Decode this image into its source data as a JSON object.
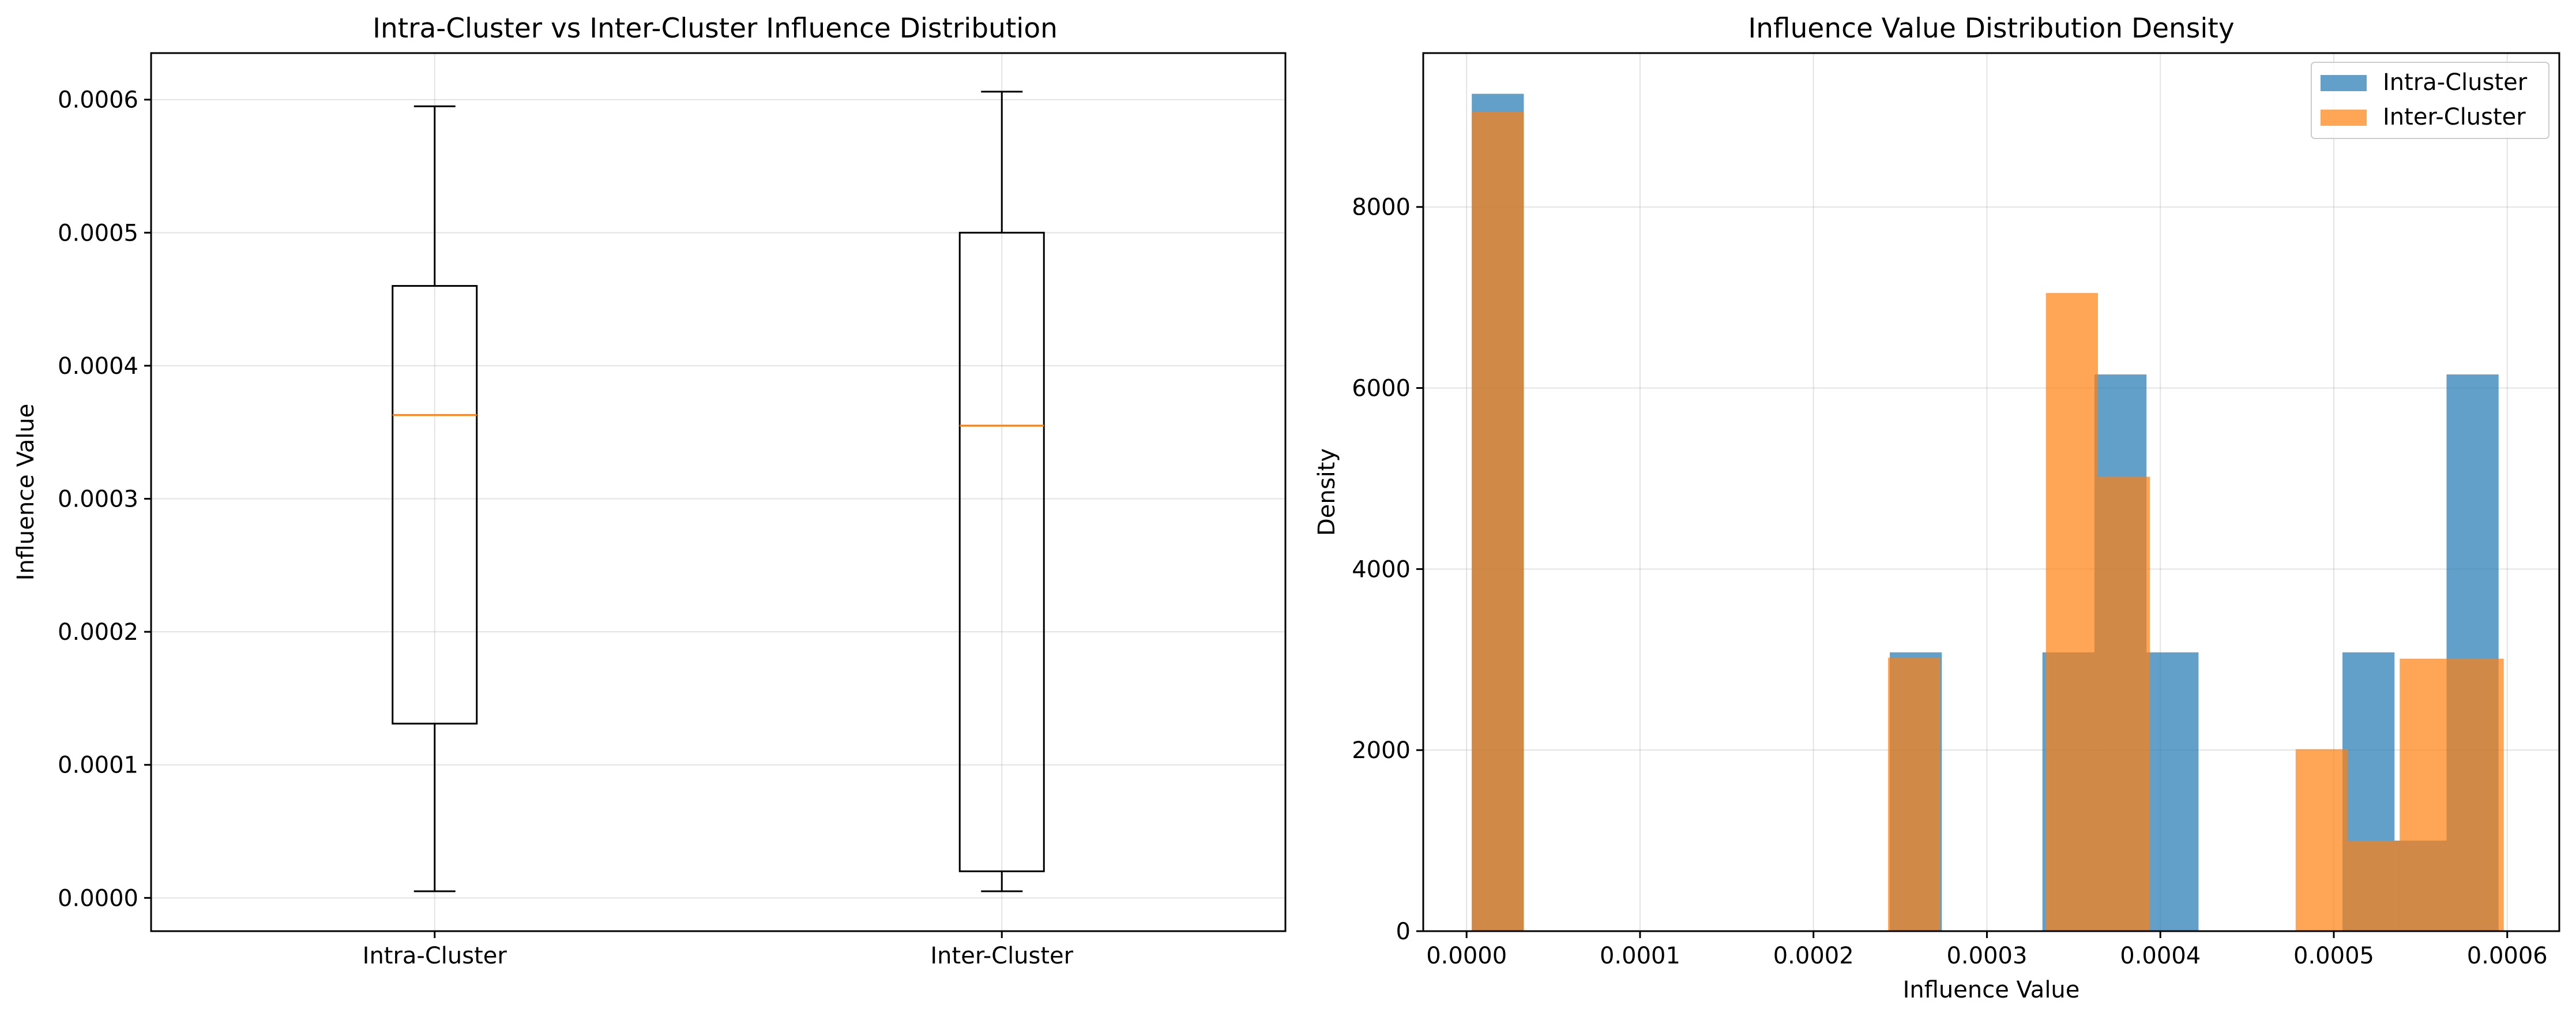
{
  "chart_data": [
    {
      "type": "box",
      "title": "Intra-Cluster vs Inter-Cluster Influence Distribution",
      "xlabel": "",
      "ylabel": "Influence Value",
      "categories": [
        "Intra-Cluster",
        "Inter-Cluster"
      ],
      "ylim": [
        -2.5e-05,
        0.000635
      ],
      "yticks": [
        "0.0000",
        "0.0001",
        "0.0002",
        "0.0003",
        "0.0004",
        "0.0005",
        "0.0006"
      ],
      "ytick_values": [
        0,
        0.0001,
        0.0002,
        0.0003,
        0.0004,
        0.0005,
        0.0006
      ],
      "grid": true,
      "boxes": [
        {
          "name": "Intra-Cluster",
          "whisker_low": 5e-06,
          "q1": 0.000131,
          "median": 0.000363,
          "q3": 0.00046,
          "whisker_high": 0.000595
        },
        {
          "name": "Inter-Cluster",
          "whisker_low": 5e-06,
          "q1": 2e-05,
          "median": 0.000355,
          "q3": 0.0005,
          "whisker_high": 0.000606
        }
      ],
      "colors": {
        "box": "#000000",
        "median": "#ff7f0e"
      }
    },
    {
      "type": "histogram",
      "title": "Influence Value Distribution Density",
      "xlabel": "Influence Value",
      "ylabel": "Density",
      "xlim": [
        -2.5e-05,
        0.00063
      ],
      "ylim": [
        0,
        9700
      ],
      "xticks": [
        "0.0000",
        "0.0001",
        "0.0002",
        "0.0003",
        "0.0004",
        "0.0005",
        "0.0006"
      ],
      "xtick_values": [
        0,
        0.0001,
        0.0002,
        0.0003,
        0.0004,
        0.0005,
        0.0006
      ],
      "yticks": [
        "0",
        "2000",
        "4000",
        "6000",
        "8000"
      ],
      "ytick_values": [
        0,
        2000,
        4000,
        6000,
        8000
      ],
      "grid": true,
      "legend_position": "top-right",
      "series": [
        {
          "name": "Intra-Cluster",
          "color": "#1f77b4",
          "opacity": 0.7,
          "bins": [
            [
              3e-06,
              3.3e-05,
              9250
            ],
            [
              0.000244,
              0.000274,
              3080
            ],
            [
              0.000332,
              0.000362,
              3080
            ],
            [
              0.000362,
              0.000392,
              6150
            ],
            [
              0.000392,
              0.000422,
              3080
            ],
            [
              0.000505,
              0.000535,
              3080
            ],
            [
              0.000535,
              0.000565,
              1000
            ],
            [
              0.000565,
              0.000595,
              6150
            ]
          ]
        },
        {
          "name": "Inter-Cluster",
          "color": "#ff7f0e",
          "opacity": 0.7,
          "bins": [
            [
              3e-06,
              3.3e-05,
              9050
            ],
            [
              0.000243,
              0.000273,
              3020
            ],
            [
              0.000334,
              0.000364,
              7050
            ],
            [
              0.000364,
              0.000394,
              5020
            ],
            [
              0.000478,
              0.000508,
              2010
            ],
            [
              0.000508,
              0.000538,
              1000
            ],
            [
              0.000538,
              0.000568,
              3010
            ],
            [
              0.000568,
              0.000598,
              3010
            ]
          ]
        }
      ]
    }
  ]
}
